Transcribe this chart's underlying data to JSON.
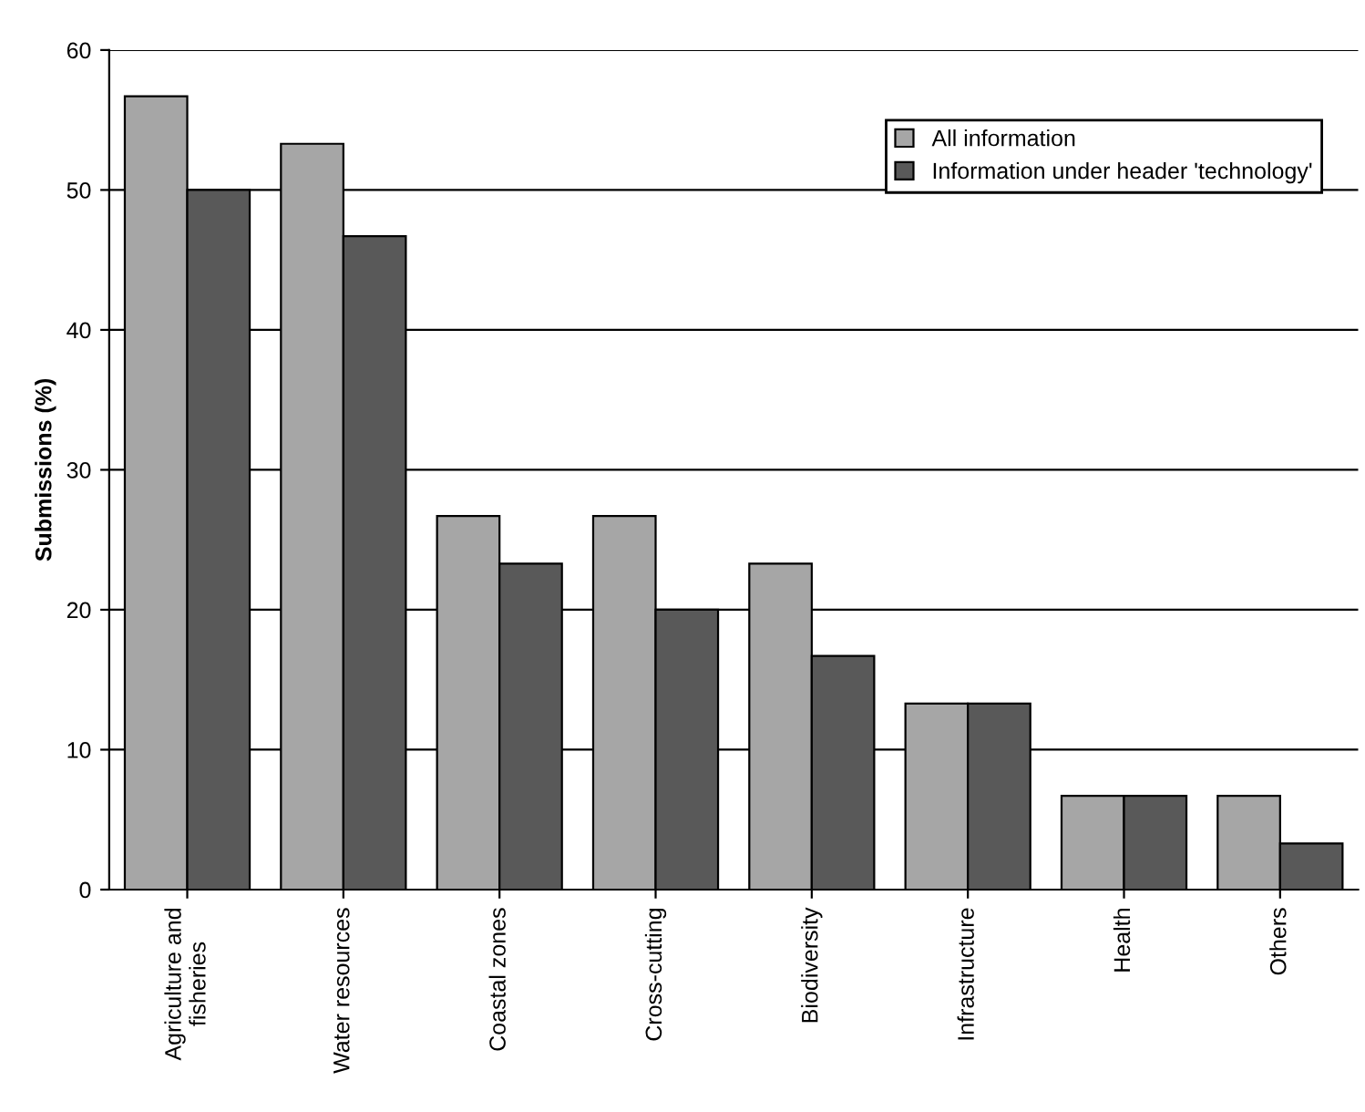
{
  "chart_data": {
    "type": "bar",
    "ylabel": "Submissions (%)",
    "categories": [
      "Agriculture and\nfisheries",
      "Water resources",
      "Coastal zones",
      "Cross-cutting",
      "Biodiversity",
      "Infrastructure",
      "Health",
      "Others"
    ],
    "series": [
      {
        "name": "All information",
        "color": "#a6a6a6",
        "values": [
          56.7,
          53.3,
          26.7,
          26.7,
          23.3,
          13.3,
          6.7,
          6.7
        ]
      },
      {
        "name": "Information under header 'technology'",
        "color": "#595959",
        "values": [
          50,
          46.7,
          23.3,
          20,
          16.7,
          13.3,
          6.7,
          3.3
        ]
      }
    ],
    "ylim": [
      0,
      60
    ],
    "yticks": [
      0,
      10,
      20,
      30,
      40,
      50,
      60
    ],
    "grid": "y",
    "legend": "top right"
  }
}
